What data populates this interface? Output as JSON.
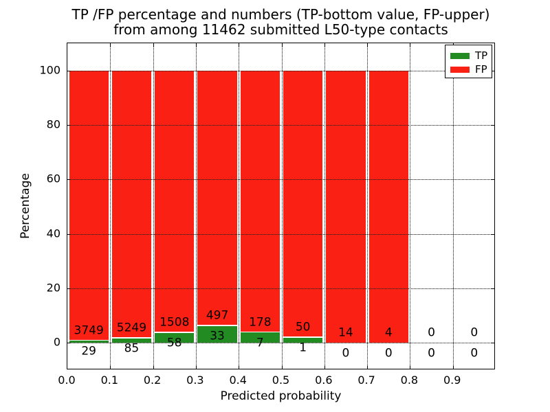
{
  "figure": {
    "title_line1": "TP /FP percentage and numbers (TP-bottom value, FP-upper)",
    "title_line2": "from among 11462 submitted L50-type contacts",
    "xlabel": "Predicted probability",
    "ylabel": "Percentage"
  },
  "legend": {
    "items": [
      {
        "label": "TP",
        "color": "#228b22"
      },
      {
        "label": "FP",
        "color": "#fa2014"
      }
    ]
  },
  "chart_data": {
    "type": "bar",
    "subtype": "stacked-percentage-histogram",
    "title": "TP /FP percentage and numbers (TP-bottom value, FP-upper) from among 11462 submitted L50-type contacts",
    "xlabel": "Predicted probability",
    "ylabel": "Percentage",
    "xlim": [
      0.0,
      1.0
    ],
    "ylim": [
      -10,
      110
    ],
    "xticks": [
      0.0,
      0.1,
      0.2,
      0.3,
      0.4,
      0.5,
      0.6,
      0.7,
      0.8,
      0.9
    ],
    "xtick_labels": [
      "0.0",
      "0.1",
      "0.2",
      "0.3",
      "0.4",
      "0.5",
      "0.6",
      "0.7",
      "0.8",
      "0.9"
    ],
    "yticks": [
      0,
      20,
      40,
      60,
      80,
      100
    ],
    "ytick_labels": [
      "0",
      "20",
      "40",
      "60",
      "80",
      "100"
    ],
    "grid": "dotted",
    "legend_position": "upper right",
    "bin_width": 0.1,
    "bin_starts": [
      0.0,
      0.1,
      0.2,
      0.3,
      0.4,
      0.5,
      0.6,
      0.7,
      0.8,
      0.9
    ],
    "series": [
      {
        "name": "TP",
        "color": "#228b22",
        "counts": [
          29,
          85,
          58,
          33,
          7,
          1,
          0,
          0,
          0,
          0
        ]
      },
      {
        "name": "FP",
        "color": "#fa2014",
        "counts": [
          3749,
          5249,
          1508,
          497,
          178,
          50,
          14,
          4,
          0,
          0
        ]
      }
    ],
    "tp_percent_of_bin": [
      0.77,
      1.59,
      3.7,
      6.23,
      3.78,
      1.96,
      0,
      0,
      null,
      null
    ],
    "fp_percent_of_bin": [
      99.23,
      98.41,
      96.3,
      93.77,
      96.22,
      98.04,
      100,
      100,
      null,
      null
    ],
    "total_submitted": 11462,
    "bar_label_pairs": [
      {
        "fp_label": "3749",
        "tp_label": "29"
      },
      {
        "fp_label": "5249",
        "tp_label": "85"
      },
      {
        "fp_label": "1508",
        "tp_label": "58"
      },
      {
        "fp_label": "497",
        "tp_label": "33"
      },
      {
        "fp_label": "178",
        "tp_label": "7"
      },
      {
        "fp_label": "50",
        "tp_label": "1"
      },
      {
        "fp_label": "14",
        "tp_label": "0"
      },
      {
        "fp_label": "4",
        "tp_label": "0"
      },
      {
        "fp_label": "0",
        "tp_label": "0"
      },
      {
        "fp_label": "0",
        "tp_label": "0"
      }
    ]
  }
}
